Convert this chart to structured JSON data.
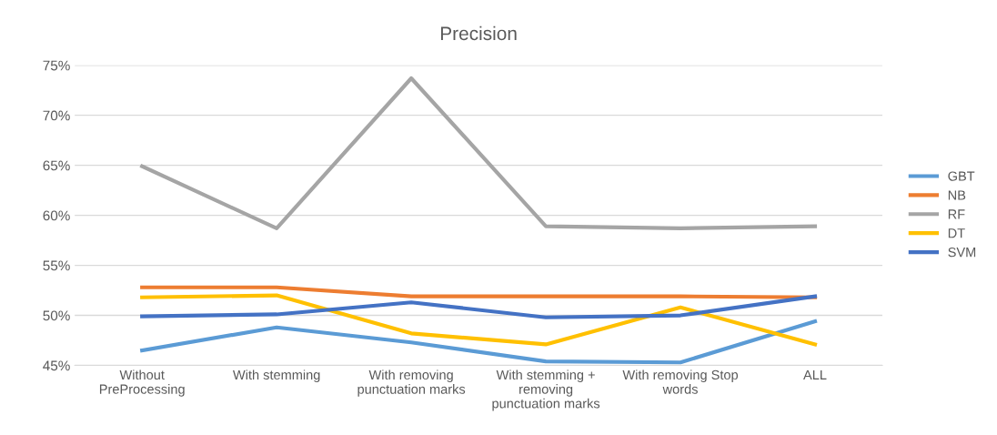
{
  "chart_data": {
    "type": "line",
    "title": "Precision",
    "categories": [
      "Without\nPreProcessing",
      "With stemming",
      "With removing\npunctuation marks",
      "With stemming +\nremoving\npunctuation marks",
      "With removing Stop\nwords",
      "ALL"
    ],
    "series": [
      {
        "name": "GBT",
        "color": "#5b9bd5",
        "values": [
          46.5,
          48.8,
          47.3,
          45.4,
          45.3,
          49.4
        ]
      },
      {
        "name": "NB",
        "color": "#ed7d31",
        "values": [
          52.8,
          52.8,
          51.9,
          51.9,
          51.9,
          51.8
        ]
      },
      {
        "name": "RF",
        "color": "#a5a5a5",
        "values": [
          64.9,
          58.7,
          73.7,
          58.9,
          58.7,
          58.9
        ]
      },
      {
        "name": "DT",
        "color": "#ffc000",
        "values": [
          51.8,
          52.0,
          48.2,
          47.1,
          50.8,
          47.1
        ]
      },
      {
        "name": "SVM",
        "color": "#4472c4",
        "values": [
          49.9,
          50.1,
          51.3,
          49.8,
          50.0,
          51.9
        ]
      }
    ],
    "ylim": [
      45,
      75
    ],
    "yticks": [
      {
        "value": 45,
        "label": "45%"
      },
      {
        "value": 50,
        "label": "50%"
      },
      {
        "value": 55,
        "label": "55%"
      },
      {
        "value": 60,
        "label": "60%"
      },
      {
        "value": 65,
        "label": "65%"
      },
      {
        "value": 70,
        "label": "70%"
      },
      {
        "value": 75,
        "label": "75%"
      }
    ],
    "grid": "y",
    "legend": "right",
    "marker": "none",
    "line_style": "solid"
  }
}
